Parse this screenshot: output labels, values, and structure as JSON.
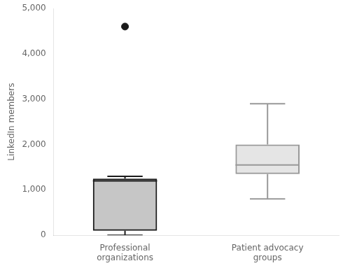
{
  "chart_data": {
    "type": "box",
    "y_label": "LinkedIn members",
    "categories": [
      "Professional\norganizations",
      "Patient advocacy\ngroups"
    ],
    "boxes": [
      {
        "median": 1200,
        "q1": 100,
        "q3": 1250,
        "whisker_low": 0,
        "whisker_high": 1300,
        "outliers": [
          4600
        ]
      },
      {
        "median": 1550,
        "q1": 1350,
        "q3": 2000,
        "whisker_low": 800,
        "whisker_high": 2900,
        "outliers": []
      }
    ],
    "colors": [
      "#1a1a1a",
      "#999999"
    ],
    "ylim": [
      0,
      5000
    ],
    "yticks": [
      0,
      {
        "value": 1000,
        "label": "1,000"
      },
      {
        "value": 2000,
        "label": "2,000"
      },
      {
        "value": 3000,
        "label": "3,000"
      },
      {
        "value": 4000,
        "label": "4,000"
      },
      {
        "value": 5000,
        "label": "5,000"
      }
    ],
    "grid": false
  }
}
